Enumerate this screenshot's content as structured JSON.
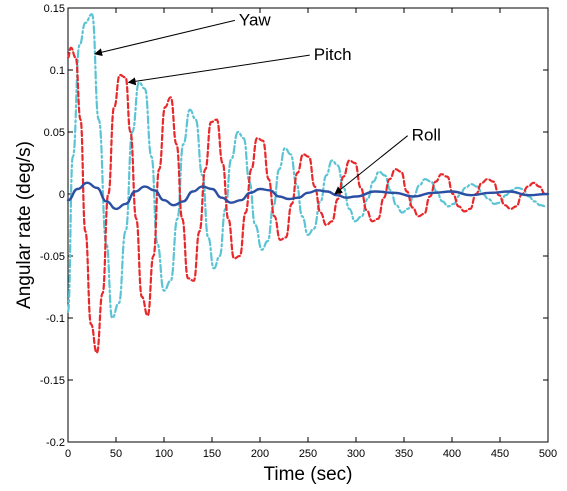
{
  "chart_data": {
    "type": "line",
    "xlabel": "Time (sec)",
    "ylabel": "Angular rate (deg/s)",
    "xlim": [
      0,
      500
    ],
    "ylim": [
      -0.2,
      0.15
    ],
    "xticks": [
      "0",
      "50",
      "100",
      "150",
      "200",
      "250",
      "300",
      "350",
      "400",
      "450",
      "500"
    ],
    "yticks": [
      "-0.2",
      "-0.15",
      "-0.1",
      "-0.05",
      "0",
      "0.05",
      "0.1",
      "0.15"
    ],
    "grid": false,
    "legend": "none",
    "series": [
      {
        "name": "Yaw",
        "color": "#5bc4d4",
        "style": "dash-dot",
        "x": [
          0,
          5,
          12,
          18,
          25,
          32,
          40,
          46,
          53,
          60,
          67,
          74,
          80,
          87,
          93,
          100,
          107,
          114,
          120,
          127,
          133,
          140,
          146,
          152,
          158,
          164,
          170,
          177,
          183,
          189,
          195,
          202,
          208,
          214,
          220,
          226,
          232,
          238,
          244,
          250,
          256,
          263,
          269,
          275,
          281,
          287,
          293,
          299,
          306,
          312,
          318,
          324,
          330,
          336,
          342,
          348,
          354,
          360,
          366,
          372,
          378,
          384,
          390,
          396,
          402,
          408,
          414,
          420,
          426,
          432,
          438,
          444,
          450,
          456,
          462,
          468,
          474,
          480,
          486,
          492,
          498
        ],
        "y": [
          -0.095,
          0.03,
          0.12,
          0.138,
          0.145,
          0.06,
          -0.04,
          -0.1,
          -0.088,
          -0.03,
          0.05,
          0.09,
          0.085,
          0.03,
          -0.04,
          -0.078,
          -0.07,
          -0.02,
          0.04,
          0.068,
          0.06,
          0.015,
          -0.035,
          -0.06,
          -0.05,
          -0.012,
          0.028,
          0.05,
          0.045,
          0.01,
          -0.025,
          -0.045,
          -0.038,
          -0.01,
          0.02,
          0.037,
          0.032,
          0.008,
          -0.018,
          -0.033,
          -0.028,
          -0.006,
          0.015,
          0.027,
          0.023,
          0.005,
          -0.012,
          -0.022,
          -0.018,
          -0.004,
          0.01,
          0.018,
          0.015,
          0.003,
          -0.009,
          -0.015,
          -0.012,
          -0.002,
          0.007,
          0.012,
          0.01,
          0.002,
          -0.006,
          -0.01,
          -0.008,
          -0.001,
          0.005,
          0.008,
          0.006,
          0.0,
          -0.004,
          -0.008,
          -0.007,
          -0.001,
          0.003,
          0.005,
          0.004,
          -0.002,
          -0.006,
          -0.009,
          -0.01
        ]
      },
      {
        "name": "Pitch",
        "color": "#e8282a",
        "style": "dashed",
        "x": [
          0,
          3,
          8,
          13,
          18,
          24,
          30,
          36,
          42,
          48,
          54,
          60,
          65,
          71,
          77,
          83,
          89,
          95,
          101,
          107,
          113,
          119,
          125,
          131,
          137,
          143,
          149,
          155,
          161,
          167,
          173,
          179,
          185,
          191,
          197,
          203,
          209,
          215,
          221,
          227,
          233,
          239,
          245,
          251,
          257,
          263,
          269,
          275,
          281,
          287,
          293,
          299,
          305,
          311,
          317,
          323,
          329,
          335,
          341,
          347,
          353,
          359,
          365,
          371,
          377,
          383,
          389,
          395,
          401,
          407,
          413,
          419,
          425,
          431,
          437,
          443,
          449,
          455,
          461,
          467,
          473,
          479,
          485,
          491,
          497
        ],
        "y": [
          0.11,
          0.118,
          0.11,
          0.06,
          -0.03,
          -0.105,
          -0.128,
          -0.08,
          0.0,
          0.07,
          0.096,
          0.094,
          0.05,
          -0.02,
          -0.083,
          -0.098,
          -0.05,
          0.02,
          0.07,
          0.078,
          0.04,
          -0.02,
          -0.068,
          -0.07,
          -0.03,
          0.02,
          0.058,
          0.06,
          0.025,
          -0.02,
          -0.052,
          -0.05,
          -0.015,
          0.02,
          0.045,
          0.043,
          0.012,
          -0.018,
          -0.037,
          -0.035,
          -0.008,
          0.017,
          0.032,
          0.03,
          0.006,
          -0.015,
          -0.025,
          -0.022,
          -0.004,
          0.014,
          0.027,
          0.025,
          0.005,
          -0.013,
          -0.022,
          -0.02,
          -0.003,
          0.012,
          0.02,
          0.018,
          0.002,
          -0.011,
          -0.018,
          -0.016,
          -0.002,
          0.01,
          0.016,
          0.014,
          0.0,
          -0.01,
          -0.014,
          -0.012,
          0.0,
          0.009,
          0.012,
          0.01,
          -0.001,
          -0.009,
          -0.012,
          -0.01,
          0.0,
          0.006,
          0.009,
          0.006,
          0.0
        ]
      },
      {
        "name": "Roll",
        "color": "#2b4fa3",
        "style": "solid",
        "x": [
          0,
          10,
          20,
          30,
          40,
          50,
          60,
          70,
          80,
          90,
          100,
          110,
          120,
          130,
          140,
          150,
          160,
          170,
          180,
          190,
          200,
          210,
          220,
          230,
          240,
          250,
          260,
          270,
          280,
          290,
          300,
          320,
          340,
          360,
          380,
          400,
          420,
          440,
          460,
          480,
          500
        ],
        "y": [
          -0.005,
          0.004,
          0.009,
          0.005,
          -0.006,
          -0.012,
          -0.008,
          0.002,
          0.006,
          0.003,
          -0.005,
          -0.009,
          -0.006,
          0.002,
          0.006,
          0.004,
          -0.003,
          -0.007,
          -0.005,
          0.001,
          0.004,
          0.003,
          -0.002,
          -0.004,
          -0.003,
          0.001,
          0.003,
          0.002,
          -0.001,
          -0.003,
          -0.002,
          0.002,
          0.001,
          -0.002,
          0.001,
          0.002,
          -0.001,
          0.001,
          0.002,
          -0.001,
          0.0
        ]
      }
    ],
    "annotations": [
      {
        "text": "Yaw",
        "text_at": [
          178,
          0.136
        ],
        "arrow_to": [
          28,
          0.113
        ]
      },
      {
        "text": "Pitch",
        "text_at": [
          256,
          0.108
        ],
        "arrow_to": [
          63,
          0.09
        ]
      },
      {
        "text": "Roll",
        "text_at": [
          358,
          0.043
        ],
        "arrow_to": [
          278,
          0.0
        ]
      }
    ]
  }
}
